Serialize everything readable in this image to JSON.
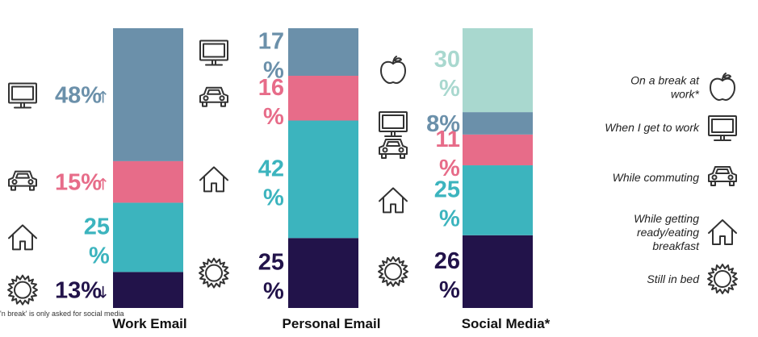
{
  "chart_data": {
    "type": "bar",
    "stacked": true,
    "categories": [
      "Work Email",
      "Personal Email",
      "Social Media*"
    ],
    "series": [
      {
        "name": "Still in bed",
        "color": "#22134a",
        "icon": "sun-icon",
        "values": [
          13,
          25,
          26
        ]
      },
      {
        "name": "While getting ready/eating breakfast",
        "color": "#3cb4be",
        "icon": "house-icon",
        "values": [
          25,
          42,
          25
        ]
      },
      {
        "name": "While commuting",
        "color": "#e76c89",
        "icon": "car-icon",
        "values": [
          15,
          16,
          11
        ]
      },
      {
        "name": "When I get to work",
        "color": "#6b90aa",
        "icon": "monitor-icon",
        "values": [
          48,
          17,
          8
        ]
      },
      {
        "name": "On a break at work*",
        "color": "#a9d8cf",
        "icon": "apple-icon",
        "values": [
          0,
          0,
          30
        ]
      }
    ],
    "value_labels": [
      [
        "13%↓",
        "25 %",
        "15%↑",
        "48%↑",
        ""
      ],
      [
        "25 %",
        "42 %",
        "16 %",
        "17 %",
        ""
      ],
      [
        "26 %",
        "25 %",
        "11 %",
        "8%",
        "30 %"
      ]
    ],
    "footnote": "'n break' is only asked for social media",
    "legend_position": "right",
    "grid": false
  }
}
